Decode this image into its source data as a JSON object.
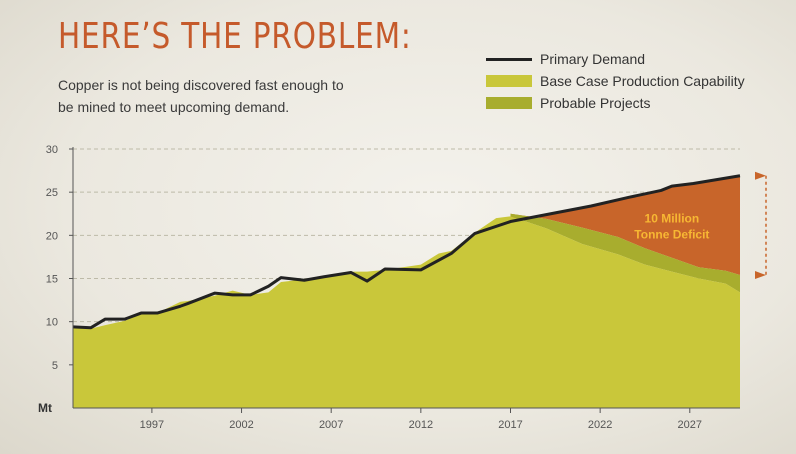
{
  "header": {
    "title": "HERE’S THE PROBLEM:",
    "subtitle": "Copper is not being discovered fast enough to be mined to meet upcoming demand."
  },
  "legend": [
    {
      "label": "Primary Demand",
      "kind": "line",
      "color": "#222222"
    },
    {
      "label": "Base Case Production Capability",
      "kind": "box",
      "color": "#c9c73a"
    },
    {
      "label": "Probable Projects",
      "kind": "box",
      "color": "#a8ad2e"
    }
  ],
  "chart_data": {
    "type": "area",
    "y_unit_label": "Mt",
    "ylim": [
      0,
      30
    ],
    "yticks": [
      5,
      10,
      15,
      20,
      25,
      30
    ],
    "xlim": [
      1992.6,
      2029.8
    ],
    "xticks": [
      1997,
      2002,
      2007,
      2012,
      2017,
      2022,
      2027
    ],
    "grid": "horizontal-dashed",
    "legend_position": "top-right",
    "colors": {
      "demand": "#222222",
      "base_case": "#c9c73a",
      "probable": "#a8ad2e",
      "deficit": "#c8652a",
      "bracket": "#c8652a"
    },
    "annotation": {
      "lines": [
        "10 Million",
        "Tonne Deficit"
      ],
      "x": 2026,
      "y": 21
    },
    "series": [
      {
        "name": "Primary Demand",
        "points": [
          [
            1992.6,
            9.4
          ],
          [
            1993.6,
            9.3
          ],
          [
            1994.4,
            10.3
          ],
          [
            1995.5,
            10.3
          ],
          [
            1996.4,
            11.0
          ],
          [
            1997.3,
            11.0
          ],
          [
            1998.6,
            11.8
          ],
          [
            1999.0,
            12.1
          ],
          [
            2000.5,
            13.3
          ],
          [
            2001.5,
            13.1
          ],
          [
            2002.5,
            13.1
          ],
          [
            2003.5,
            14.1
          ],
          [
            2004.2,
            15.1
          ],
          [
            2005.5,
            14.8
          ],
          [
            2006.6,
            15.2
          ],
          [
            2008.1,
            15.7
          ],
          [
            2009.0,
            14.7
          ],
          [
            2010.0,
            16.1
          ],
          [
            2012.0,
            16.0
          ],
          [
            2013.7,
            17.9
          ],
          [
            2015.0,
            20.2
          ],
          [
            2017.0,
            21.6
          ],
          [
            2019.5,
            22.6
          ],
          [
            2021.5,
            23.4
          ],
          [
            2023.6,
            24.4
          ],
          [
            2025.4,
            25.2
          ],
          [
            2026.0,
            25.7
          ],
          [
            2027.2,
            26.0
          ],
          [
            2029.8,
            26.9
          ]
        ]
      },
      {
        "name": "Base Case Production Capability",
        "points": [
          [
            1992.6,
            9.3
          ],
          [
            1993.6,
            9.2
          ],
          [
            1994.4,
            9.6
          ],
          [
            1995.5,
            10.1
          ],
          [
            1996.4,
            10.9
          ],
          [
            1997.3,
            11.0
          ],
          [
            1998.6,
            12.3
          ],
          [
            1999.0,
            12.4
          ],
          [
            2000.5,
            13.0
          ],
          [
            2001.5,
            13.6
          ],
          [
            2002.5,
            13.1
          ],
          [
            2003.5,
            13.4
          ],
          [
            2004.2,
            14.6
          ],
          [
            2005.5,
            14.9
          ],
          [
            2006.6,
            15.3
          ],
          [
            2008.1,
            15.8
          ],
          [
            2009.0,
            15.8
          ],
          [
            2010.0,
            16.0
          ],
          [
            2012.0,
            16.6
          ],
          [
            2013.0,
            17.9
          ],
          [
            2013.7,
            18.2
          ],
          [
            2015.0,
            20.3
          ],
          [
            2016.2,
            22.0
          ],
          [
            2017.0,
            22.2
          ],
          [
            2019.0,
            20.8
          ],
          [
            2021.0,
            19.0
          ],
          [
            2023.0,
            17.8
          ],
          [
            2024.5,
            16.6
          ],
          [
            2026.0,
            15.8
          ],
          [
            2027.5,
            15.0
          ],
          [
            2029.0,
            14.4
          ],
          [
            2029.8,
            13.4
          ]
        ]
      },
      {
        "name": "Probable Projects",
        "points": [
          [
            2017.0,
            22.5
          ],
          [
            2019.0,
            21.9
          ],
          [
            2021.0,
            20.9
          ],
          [
            2023.0,
            19.8
          ],
          [
            2024.5,
            18.5
          ],
          [
            2026.0,
            17.4
          ],
          [
            2027.5,
            16.3
          ],
          [
            2029.0,
            15.9
          ],
          [
            2029.8,
            15.4
          ]
        ]
      }
    ]
  }
}
